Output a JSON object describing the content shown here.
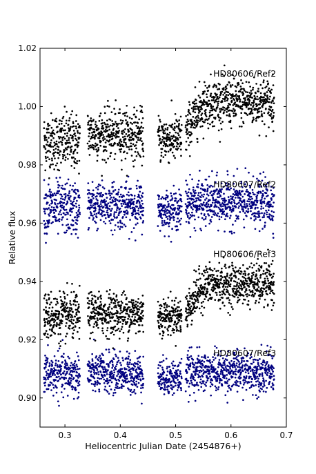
{
  "chart_data": {
    "type": "scatter",
    "title": "",
    "xlabel": "Heliocentric Julian Date (2454876+)",
    "ylabel": "Relative flux",
    "xlim": [
      0.255,
      0.7
    ],
    "ylim": [
      0.89,
      1.02
    ],
    "x_ticks": [
      0.3,
      0.4,
      0.5,
      0.6,
      0.7
    ],
    "x_tick_labels": [
      "0.3",
      "0.4",
      "0.5",
      "0.6",
      "0.7"
    ],
    "y_ticks": [
      0.9,
      0.92,
      0.94,
      0.96,
      0.98,
      1.0,
      1.02
    ],
    "y_tick_labels": [
      "0.90",
      "0.92",
      "0.94",
      "0.96",
      "0.98",
      "1.00",
      "1.02"
    ],
    "grid": false,
    "legend": "none",
    "series": [
      {
        "name": "HD80606/Ref2",
        "color": "#000000",
        "label_pos": {
          "x": 0.568,
          "y": 1.0103
        },
        "segments": [
          {
            "x_start": 0.262,
            "x_end": 0.327,
            "model": "flat",
            "level": 0.988,
            "scatter": 0.0048
          },
          {
            "x_start": 0.341,
            "x_end": 0.442,
            "model": "flat",
            "level": 0.9905,
            "scatter": 0.0042
          },
          {
            "x_start": 0.468,
            "x_end": 0.511,
            "model": "flat",
            "level": 0.989,
            "scatter": 0.004
          },
          {
            "x_start": 0.518,
            "x_end": 0.678,
            "model": "rise",
            "level": 0.9905,
            "level_end": 1.0015,
            "rise_x": 0.56,
            "scatter": 0.004
          }
        ]
      },
      {
        "name": "HD80607/Ref2",
        "color": "#000080",
        "label_pos": {
          "x": 0.568,
          "y": 0.9723
        },
        "segments": [
          {
            "x_start": 0.262,
            "x_end": 0.327,
            "model": "flat",
            "level": 0.965,
            "scatter": 0.0045
          },
          {
            "x_start": 0.341,
            "x_end": 0.442,
            "model": "flat",
            "level": 0.966,
            "scatter": 0.0038
          },
          {
            "x_start": 0.468,
            "x_end": 0.511,
            "model": "flat",
            "level": 0.9645,
            "scatter": 0.0032
          },
          {
            "x_start": 0.518,
            "x_end": 0.678,
            "model": "flat",
            "level": 0.967,
            "scatter": 0.004
          }
        ]
      },
      {
        "name": "HD80606/Ref3",
        "color": "#000000",
        "label_pos": {
          "x": 0.568,
          "y": 0.9484
        },
        "segments": [
          {
            "x_start": 0.262,
            "x_end": 0.327,
            "model": "flat",
            "level": 0.928,
            "scatter": 0.004
          },
          {
            "x_start": 0.341,
            "x_end": 0.442,
            "model": "flat",
            "level": 0.929,
            "scatter": 0.0036
          },
          {
            "x_start": 0.468,
            "x_end": 0.511,
            "model": "flat",
            "level": 0.928,
            "scatter": 0.003
          },
          {
            "x_start": 0.518,
            "x_end": 0.678,
            "model": "rise",
            "level": 0.929,
            "level_end": 0.939,
            "rise_x": 0.56,
            "scatter": 0.0035
          }
        ]
      },
      {
        "name": "HD80607/Ref3",
        "color": "#000080",
        "label_pos": {
          "x": 0.568,
          "y": 0.9144
        },
        "segments": [
          {
            "x_start": 0.262,
            "x_end": 0.327,
            "model": "flat",
            "level": 0.908,
            "scatter": 0.0036
          },
          {
            "x_start": 0.341,
            "x_end": 0.442,
            "model": "flat",
            "level": 0.9085,
            "scatter": 0.0034
          },
          {
            "x_start": 0.468,
            "x_end": 0.511,
            "model": "flat",
            "level": 0.907,
            "scatter": 0.003
          },
          {
            "x_start": 0.518,
            "x_end": 0.678,
            "model": "flat",
            "level": 0.909,
            "scatter": 0.0034
          }
        ]
      }
    ]
  }
}
